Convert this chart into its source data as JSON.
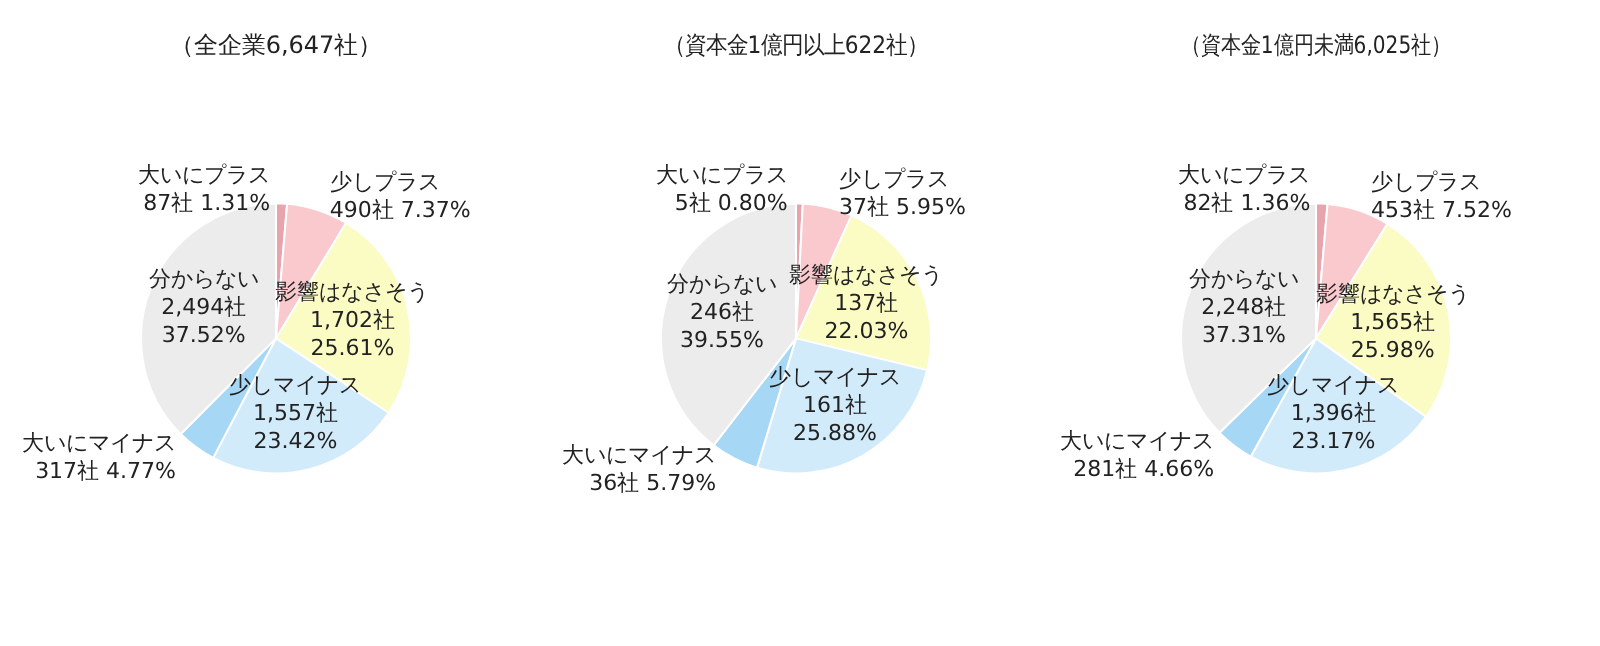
{
  "chart_data": [
    {
      "type": "pie",
      "title": "（全企業6,647社）",
      "categories": [
        "大いにプラス",
        "少しプラス",
        "影響はなさそう",
        "少しマイナス",
        "大いにマイナス",
        "分からない"
      ],
      "values": [
        87,
        490,
        1702,
        1557,
        317,
        2494
      ],
      "value_labels": [
        "87社 1.31%",
        "490社 7.37%",
        "1,702社 25.61%",
        "1,557社 23.42%",
        "317社 4.77%",
        "2,494社 37.52%"
      ],
      "colors": [
        "#e8a4ac",
        "#f9c9ce",
        "#fbfbc4",
        "#d2ebfb",
        "#a6d8f6",
        "#ececec"
      ],
      "legend": false
    },
    {
      "type": "pie",
      "title": "（資本金1億円以上622社）",
      "categories": [
        "大いにプラス",
        "少しプラス",
        "影響はなさそう",
        "少しマイナス",
        "大いにマイナス",
        "分からない"
      ],
      "values": [
        5,
        37,
        137,
        161,
        36,
        246
      ],
      "value_labels": [
        "5社 0.80%",
        "37社 5.95%",
        "137社 22.03%",
        "161社 25.88%",
        "36社 5.79%",
        "246社 39.55%"
      ],
      "colors": [
        "#e8a4ac",
        "#f9c9ce",
        "#fbfbc4",
        "#d2ebfb",
        "#a6d8f6",
        "#ececec"
      ],
      "legend": false
    },
    {
      "type": "pie",
      "title": "（資本金1億円未満6,025社）",
      "categories": [
        "大いにプラス",
        "少しプラス",
        "影響はなさそう",
        "少しマイナス",
        "大いにマイナス",
        "分からない"
      ],
      "values": [
        82,
        453,
        1565,
        1396,
        281,
        2248
      ],
      "value_labels": [
        "82社 1.36%",
        "453社 7.52%",
        "1,565社 25.98%",
        "1,396社 23.17%",
        "281社 4.66%",
        "2,248社 37.31%"
      ],
      "colors": [
        "#e8a4ac",
        "#f9c9ce",
        "#fbfbc4",
        "#d2ebfb",
        "#a6d8f6",
        "#ececec"
      ],
      "legend": false
    }
  ]
}
